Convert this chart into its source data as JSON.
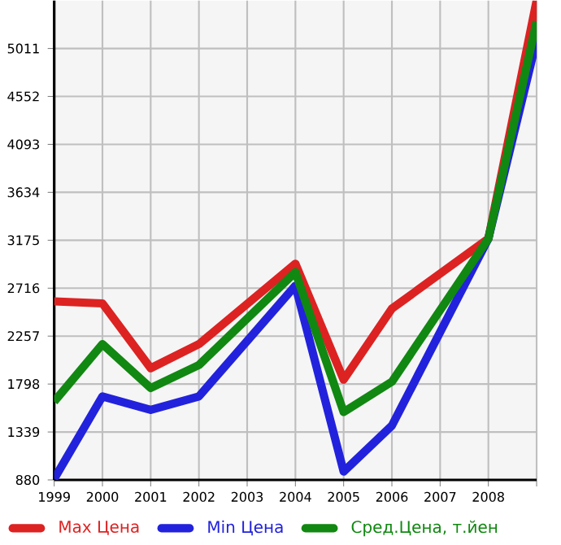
{
  "chart_data": {
    "type": "line",
    "x": [
      1999,
      2000,
      2001,
      2002,
      2004,
      2005,
      2006,
      2008,
      2009
    ],
    "series": [
      {
        "name": "Max Цена",
        "color": "#dd2222",
        "values": [
          2590,
          2570,
          1950,
          2180,
          2950,
          1840,
          2520,
          3190,
          5470
        ]
      },
      {
        "name": "Min Цена",
        "color": "#2222dd",
        "values": [
          890,
          1680,
          1550,
          1680,
          2740,
          960,
          1400,
          3190,
          5090
        ]
      },
      {
        "name": "Сред.Цена, т.йен",
        "color": "#118811",
        "values": [
          1630,
          2180,
          1760,
          1980,
          2870,
          1530,
          1820,
          3190,
          5270
        ]
      }
    ],
    "xlim": [
      1999,
      2009
    ],
    "xticks": [
      1999,
      2000,
      2001,
      2002,
      2003,
      2004,
      2005,
      2006,
      2007,
      2008,
      {
        "value": 2009,
        "label": null
      }
    ],
    "ylim": [
      880,
      5470
    ],
    "yticks": [
      880,
      1339,
      1798,
      2257,
      2716,
      3175,
      3634,
      4093,
      4552,
      5011
    ],
    "grid": true,
    "legend": "bottom",
    "marker": "none",
    "line_style": "solid"
  }
}
